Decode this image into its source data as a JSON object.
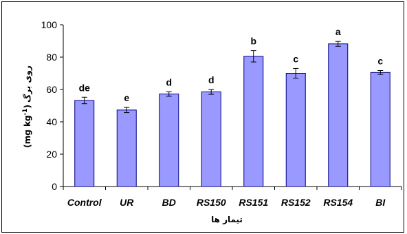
{
  "colors": {
    "bar_fill": "#9999ff",
    "bar_stroke": "#000080",
    "axis": "#000000"
  },
  "chart_data": {
    "type": "bar",
    "categories": [
      "Control",
      "UR",
      "BD",
      "RS150",
      "RS151",
      "RS152",
      "RS154",
      "BI"
    ],
    "values": [
      53.2,
      47.3,
      57.2,
      58.5,
      80.5,
      70.0,
      88.2,
      70.5
    ],
    "errors": [
      2.0,
      1.6,
      1.4,
      1.5,
      3.5,
      3.0,
      1.5,
      1.2
    ],
    "significance_letters": [
      "de",
      "e",
      "d",
      "d",
      "b",
      "c",
      "a",
      "c"
    ],
    "ylim": [
      0,
      100
    ],
    "yticks": [
      0,
      20,
      40,
      60,
      80,
      100
    ],
    "title": "",
    "xlabel": "تیمار ها",
    "ylabel_main": "روی برگ",
    "ylabel_unit": "(mg kg",
    "ylabel_sup": "-1",
    "ylabel_close": ")",
    "grid": false,
    "legend": "none"
  }
}
